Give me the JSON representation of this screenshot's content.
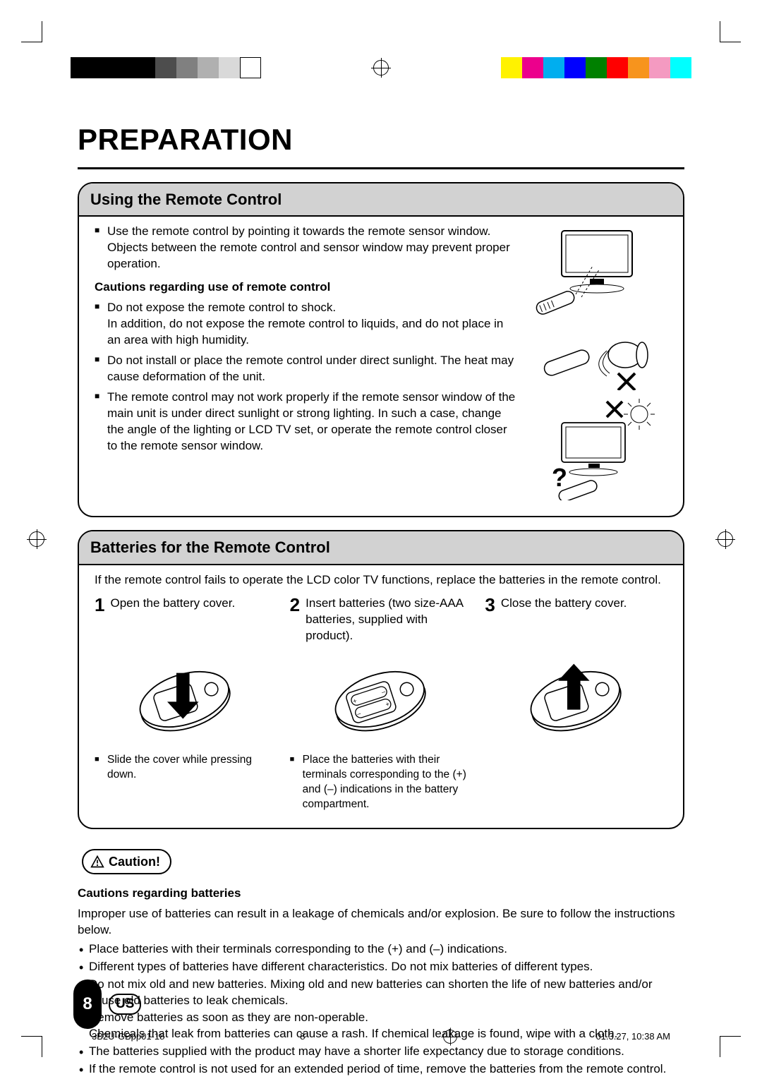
{
  "printBars": {
    "bw": [
      "#000000",
      "#000000",
      "#000000",
      "#000000",
      "#4d4d4d",
      "#808080",
      "#b0b0b0",
      "#d9d9d9",
      "#ffffff"
    ],
    "color": [
      "#fff200",
      "#ec008c",
      "#00aeef",
      "#0000ff",
      "#008000",
      "#ff0000",
      "#f7941d",
      "#f49ac1",
      "#00ffff"
    ]
  },
  "title": "PREPARATION",
  "section1": {
    "header": "Using the Remote Control",
    "intro": "Use the remote control by pointing it towards the remote sensor window. Objects between the remote control and sensor window may prevent proper operation.",
    "sub": "Cautions regarding use of remote control",
    "items": [
      "Do not expose the remote control to shock.\nIn addition, do not expose the remote control to liquids, and do not place in an area with high humidity.",
      "Do not install or place the remote control under direct sunlight. The heat may cause deformation of the unit.",
      "The remote control may not work properly if the remote sensor window of the main unit is under direct sunlight or strong lighting. In such a case, change the angle of the lighting or LCD TV set, or operate the remote control closer to the remote sensor window."
    ]
  },
  "section2": {
    "header": "Batteries for the Remote Control",
    "intro": "If the remote control fails to operate the LCD color TV functions, replace the batteries in the remote control.",
    "steps": [
      {
        "n": "1",
        "text": "Open the battery cover.",
        "note": "Slide the cover while pressing down."
      },
      {
        "n": "2",
        "text": "Insert batteries (two size-AAA batteries, supplied with product).",
        "note": "Place the batteries with their terminals corresponding to the (+) and (–) indications in the battery compartment."
      },
      {
        "n": "3",
        "text": "Close the battery cover.",
        "note": ""
      }
    ]
  },
  "caution": {
    "label": "Caution!",
    "sub": "Cautions regarding batteries",
    "intro": "Improper use of batteries can result in a leakage of chemicals and/or explosion. Be sure to follow the instructions below.",
    "items": [
      "Place batteries with their terminals corresponding to the (+) and (–) indications.",
      "Different types of batteries have different characteristics. Do not mix batteries of different types.",
      "Do not mix old and new batteries. Mixing old and new batteries can shorten the life of new batteries and/or cause old batteries to leak chemicals.",
      "Remove batteries as soon as they are non-operable.\nChemicals that leak from batteries can cause a rash. If chemical leakage is found, wipe with a cloth.",
      "The batteries supplied with the product may have a shorter life expectancy due to storage conditions.",
      "If the remote control is not used for an extended period of time, remove the batteries from the remote control."
    ]
  },
  "footer": {
    "pageNum": "8",
    "region": "US",
    "docCode": "3B2U-GBpp01-18",
    "folio": "8",
    "timestamp": "01.3.27, 10:38 AM"
  }
}
